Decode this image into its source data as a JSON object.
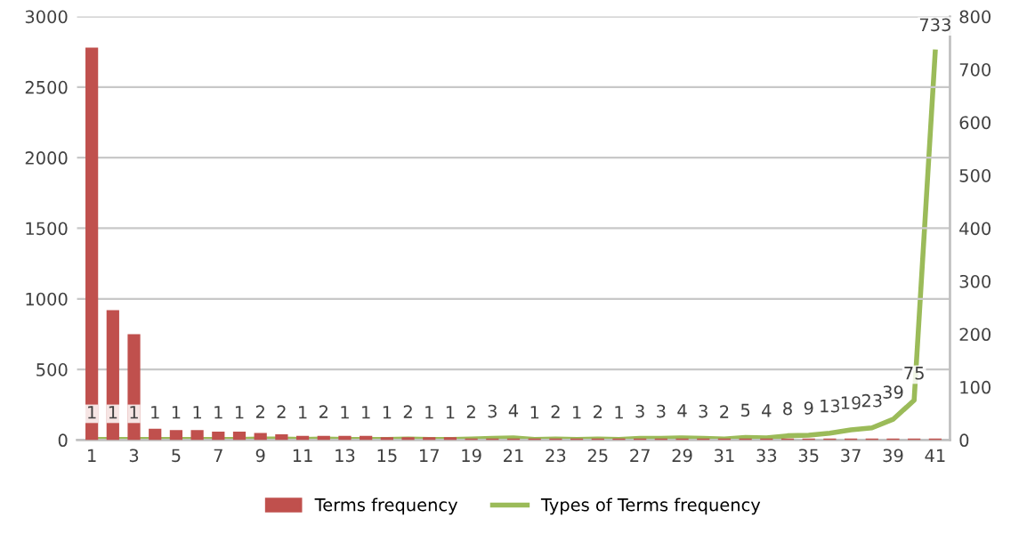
{
  "chart_data": {
    "type": "bar",
    "categories": [
      "1",
      null,
      "3",
      null,
      "5",
      null,
      "7",
      null,
      "9",
      null,
      "11",
      null,
      "13",
      null,
      "15",
      null,
      "17",
      null,
      "19",
      null,
      "21",
      null,
      "23",
      null,
      "25",
      null,
      "27",
      null,
      "29",
      null,
      "31",
      null,
      "33",
      null,
      "35",
      null,
      "37",
      null,
      "39",
      null,
      "41"
    ],
    "series": [
      {
        "name": "Terms frequency",
        "color": "#c0504d",
        "values": [
          2780,
          920,
          750,
          80,
          70,
          70,
          60,
          60,
          50,
          40,
          30,
          30,
          30,
          30,
          20,
          20,
          20,
          20,
          10,
          10,
          10,
          10,
          10,
          10,
          10,
          10,
          10,
          10,
          10,
          10,
          10,
          10,
          10,
          10,
          10,
          10,
          10,
          10,
          10,
          10,
          10
        ]
      },
      {
        "name": "Types of Terms frequency",
        "type": "line",
        "axis": "y2",
        "color": "#9bbb59",
        "data_labels": true,
        "values": [
          1,
          1,
          1,
          1,
          1,
          1,
          1,
          1,
          2,
          2,
          1,
          2,
          1,
          1,
          1,
          2,
          1,
          1,
          2,
          3,
          4,
          1,
          2,
          1,
          2,
          1,
          3,
          3,
          4,
          3,
          2,
          5,
          4,
          8,
          9,
          13,
          19,
          23,
          39,
          75,
          733
        ]
      }
    ],
    "ylim": [
      0,
      3000
    ],
    "yticks": [
      0,
      500,
      1000,
      1500,
      2000,
      2500,
      3000
    ],
    "y2lim": [
      0,
      800
    ],
    "y2ticks": [
      0,
      100,
      200,
      300,
      400,
      500,
      600,
      700,
      800
    ],
    "grid": "y",
    "legend": "bottom",
    "marker": "none"
  }
}
